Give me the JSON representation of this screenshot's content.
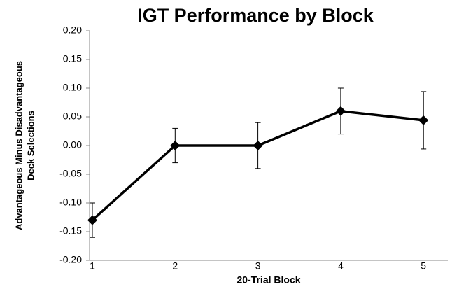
{
  "chart_data": {
    "type": "line",
    "title": "IGT Performance by Block",
    "xlabel": "20-Trial Block",
    "ylabel": [
      "Advantageous Minus Disadvantageous",
      "Deck Selections"
    ],
    "categories": [
      "1",
      "2",
      "3",
      "4",
      "5"
    ],
    "series": [
      {
        "color": "#000000",
        "values": [
          -0.13,
          0,
          0,
          0.06,
          0.044
        ],
        "errors": [
          0.03,
          0.03,
          0.04,
          0.04,
          0.05
        ]
      }
    ],
    "ylim": [
      -0.2,
      0.2
    ],
    "yticks": [
      {
        "value": -0.2,
        "label": "-0.20"
      },
      {
        "value": -0.15,
        "label": "-0.15"
      },
      {
        "value": -0.1,
        "label": "-0.10"
      },
      {
        "value": -0.05,
        "label": "-0.05"
      },
      {
        "value": 0,
        "label": "0.00"
      },
      {
        "value": 0.05,
        "label": "0.05"
      },
      {
        "value": 0.1,
        "label": "0.10"
      },
      {
        "value": 0.15,
        "label": "0.15"
      },
      {
        "value": 0.2,
        "label": "0.20"
      }
    ]
  }
}
